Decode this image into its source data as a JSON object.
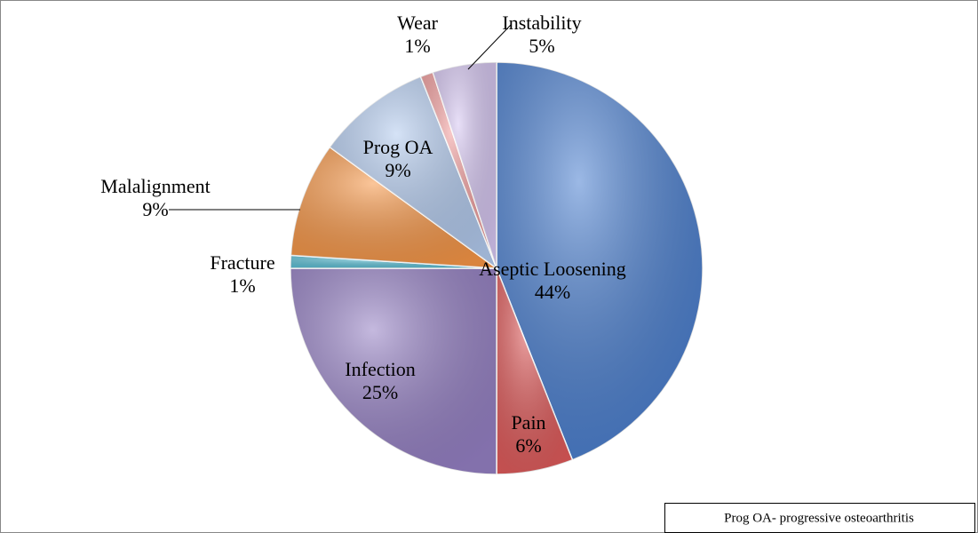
{
  "chart_data": {
    "type": "pie",
    "categories": [
      "Aseptic Loosening",
      "Pain",
      "Infection",
      "Fracture",
      "Malalignment",
      "Prog OA",
      "Wear",
      "Instability"
    ],
    "values": [
      44,
      6,
      25,
      1,
      9,
      9,
      1,
      5
    ],
    "value_labels": [
      "44%",
      "6%",
      "25%",
      "1%",
      "9%",
      "9%",
      "1%",
      "5%"
    ],
    "colors": [
      "#4a7fd0",
      "#e05a5a",
      "#9580c4",
      "#5bc0d6",
      "#f79646",
      "#b3cbef",
      "#f29c9c",
      "#d6c6f2"
    ],
    "annotation": "Prog OA- progressive osteoarthritis"
  }
}
